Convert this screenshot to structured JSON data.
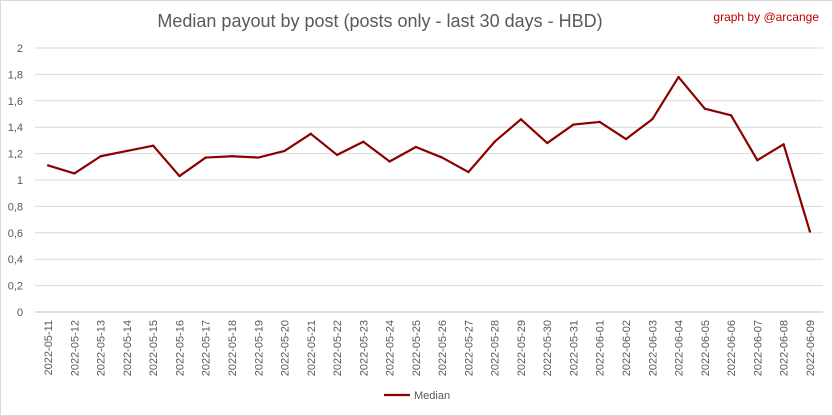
{
  "chart_data": {
    "type": "line",
    "title": "Median payout by post (posts only - last 30 days - HBD)",
    "credit": "graph by @arcange",
    "xlabel": "",
    "ylabel": "",
    "ylim": [
      0,
      2
    ],
    "yticks": [
      "0",
      "0,2",
      "0,4",
      "0,6",
      "0,8",
      "1",
      "1,2",
      "1,4",
      "1,6",
      "1,8",
      "2"
    ],
    "grid": true,
    "legend_position": "bottom",
    "categories": [
      "2022-05-11",
      "2022-05-12",
      "2022-05-13",
      "2022-05-14",
      "2022-05-15",
      "2022-05-16",
      "2022-05-17",
      "2022-05-18",
      "2022-05-19",
      "2022-05-20",
      "2022-05-21",
      "2022-05-22",
      "2022-05-23",
      "2022-05-24",
      "2022-05-25",
      "2022-05-26",
      "2022-05-27",
      "2022-05-28",
      "2022-05-29",
      "2022-05-30",
      "2022-05-31",
      "2022-06-01",
      "2022-06-02",
      "2022-06-03",
      "2022-06-04",
      "2022-06-05",
      "2022-06-06",
      "2022-06-07",
      "2022-06-08",
      "2022-06-09"
    ],
    "series": [
      {
        "name": "Median",
        "color": "#8b0000",
        "values": [
          1.11,
          1.05,
          1.18,
          1.22,
          1.26,
          1.03,
          1.17,
          1.18,
          1.17,
          1.22,
          1.35,
          1.19,
          1.29,
          1.14,
          1.25,
          1.17,
          1.06,
          1.29,
          1.46,
          1.28,
          1.42,
          1.44,
          1.31,
          1.46,
          1.78,
          1.54,
          1.49,
          1.15,
          1.27,
          0.61
        ]
      }
    ]
  }
}
